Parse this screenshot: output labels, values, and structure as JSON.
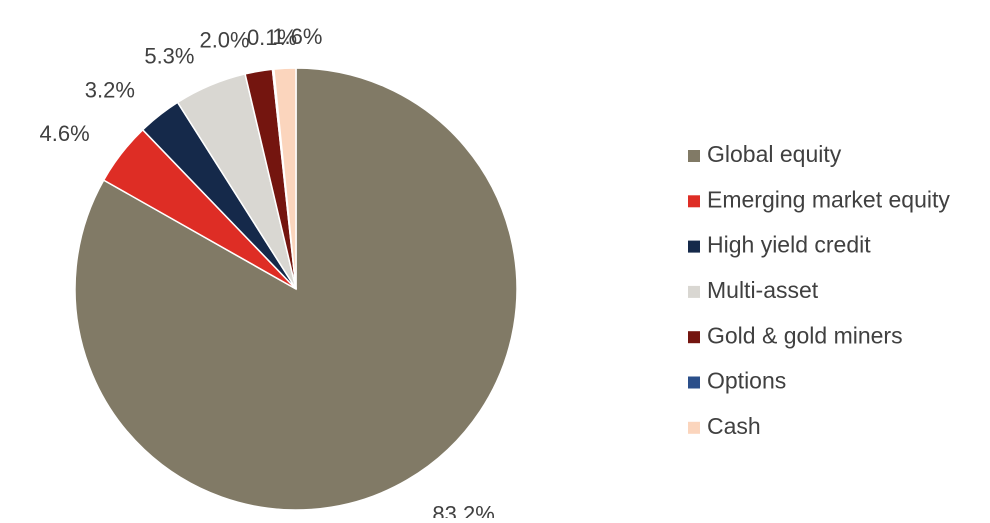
{
  "chart_data": {
    "type": "pie",
    "title": "",
    "slices": [
      {
        "label": "Global equity",
        "value": 83.2,
        "value_label": "83.2%",
        "color": "#817a66"
      },
      {
        "label": "Emerging market equity",
        "value": 4.6,
        "value_label": "4.6%",
        "color": "#de2d25"
      },
      {
        "label": "High yield credit",
        "value": 3.2,
        "value_label": "3.2%",
        "color": "#15294a"
      },
      {
        "label": "Multi-asset",
        "value": 5.3,
        "value_label": "5.3%",
        "color": "#d9d7d2"
      },
      {
        "label": "Gold & gold miners",
        "value": 2.0,
        "value_label": "2.0%",
        "color": "#74150f"
      },
      {
        "label": "Options",
        "value": 0.1,
        "value_label": "0.1%",
        "color": "#2b4f8a"
      },
      {
        "label": "Cash",
        "value": 1.6,
        "value_label": "1.6%",
        "color": "#fbd5bd"
      }
    ],
    "start_angle": "12 o'clock",
    "direction": "clockwise",
    "legend_position": "right"
  }
}
